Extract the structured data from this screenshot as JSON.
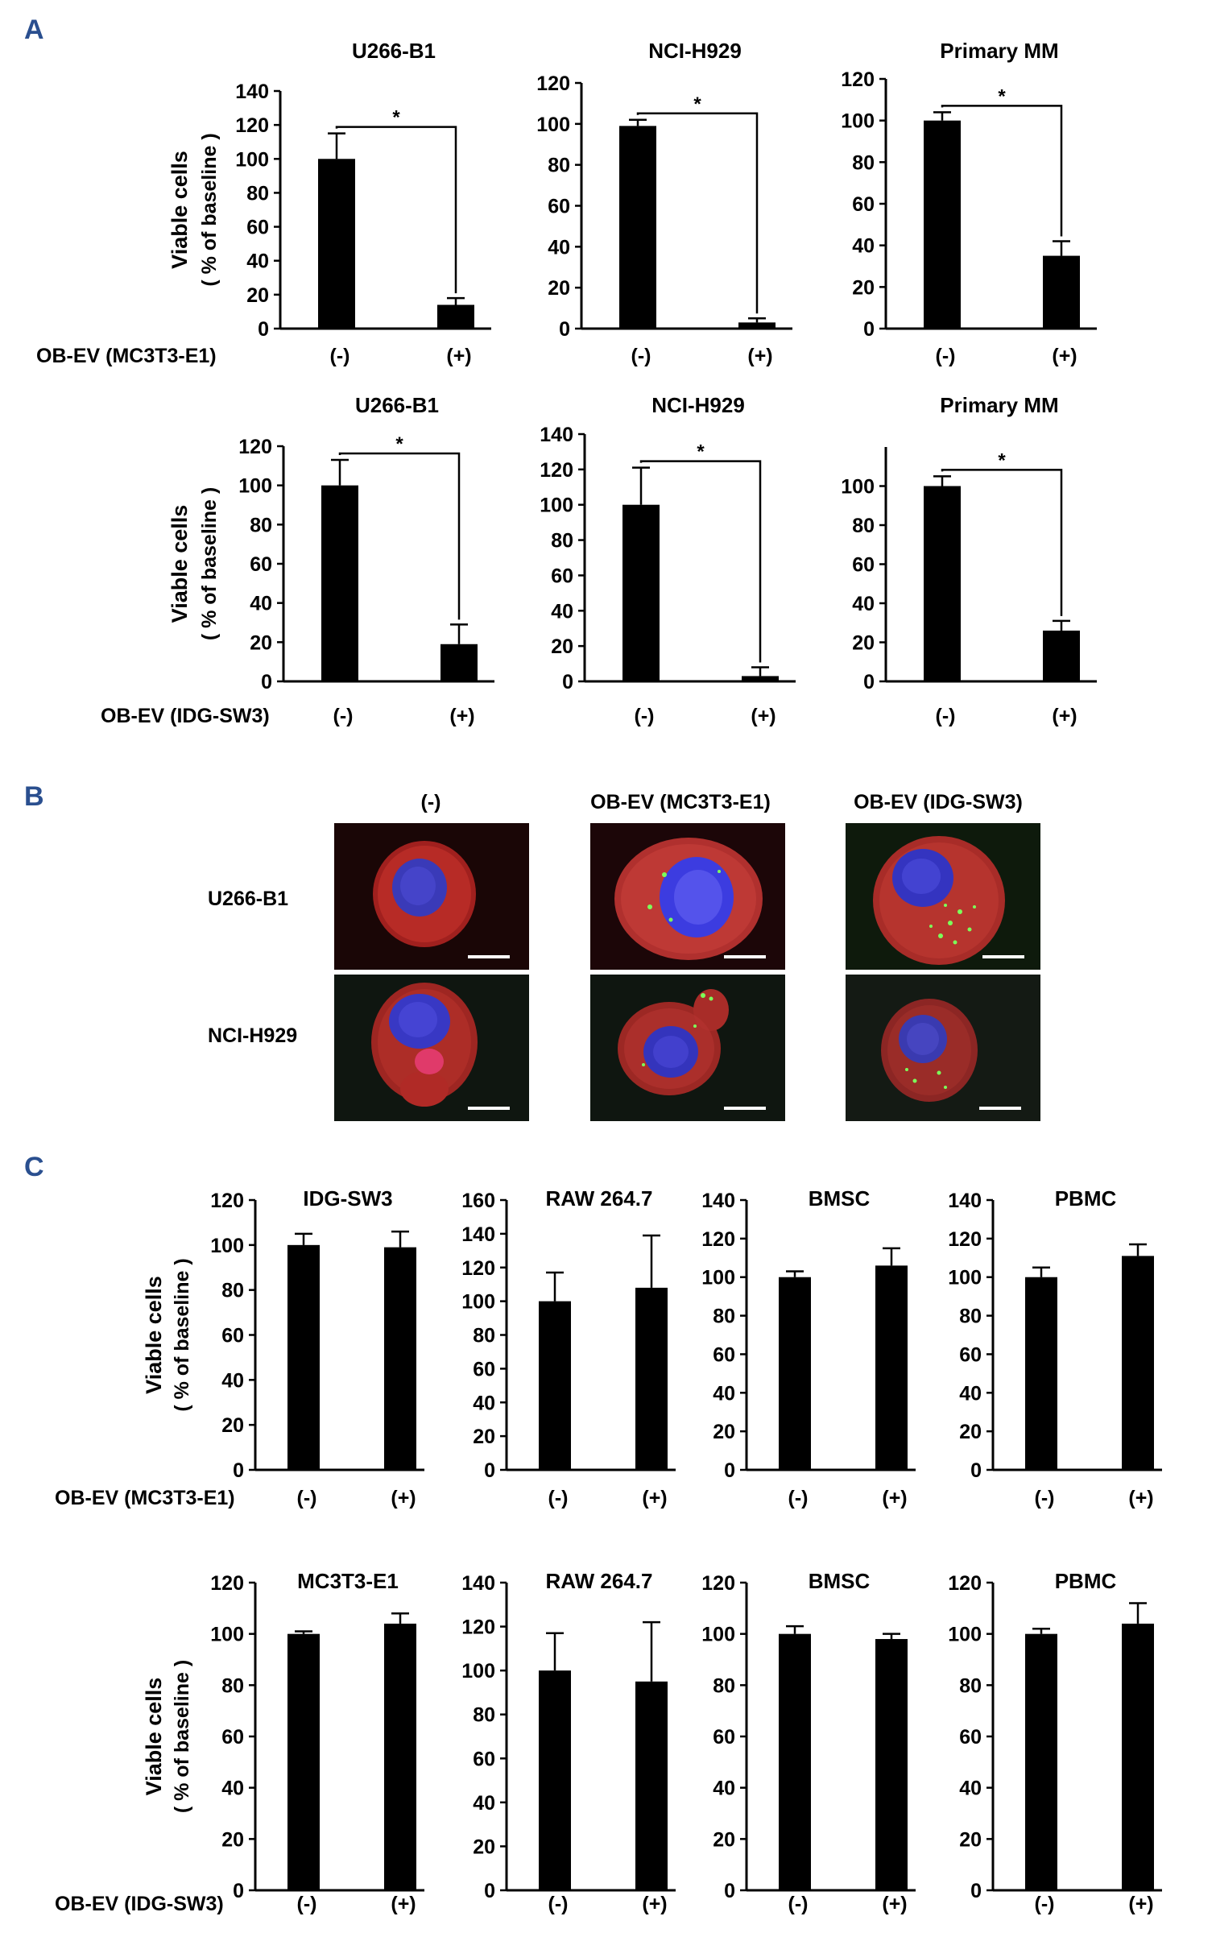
{
  "panels": {
    "a": "A",
    "b": "B",
    "c": "C"
  },
  "chart_data": [
    {
      "type": "bar",
      "row": "A1",
      "title": "U266-B1",
      "ylabel": "Viable cells",
      "ylabel2": "( % of baseline )",
      "xrow_label": "OB-EV (MC3T3-E1)",
      "categories": [
        "(-)",
        "(+)"
      ],
      "values": [
        100,
        14
      ],
      "errors": [
        15,
        4
      ],
      "ylim": [
        0,
        140
      ],
      "yticks": [
        0,
        20,
        40,
        60,
        80,
        100,
        120,
        140
      ],
      "significance": "*"
    },
    {
      "type": "bar",
      "row": "A1",
      "title": "NCI-H929",
      "categories": [
        "(-)",
        "(+)"
      ],
      "values": [
        99,
        3
      ],
      "errors": [
        3,
        2
      ],
      "ylim": [
        0,
        120
      ],
      "yticks": [
        0,
        20,
        40,
        60,
        80,
        100,
        120
      ],
      "significance": "*"
    },
    {
      "type": "bar",
      "row": "A1",
      "title": "Primary MM",
      "categories": [
        "(-)",
        "(+)"
      ],
      "values": [
        100,
        35
      ],
      "errors": [
        4,
        7
      ],
      "ylim": [
        0,
        120
      ],
      "yticks": [
        0,
        20,
        40,
        60,
        80,
        100,
        120
      ],
      "significance": "*"
    },
    {
      "type": "bar",
      "row": "A2",
      "title": "U266-B1",
      "ylabel": "Viable cells",
      "ylabel2": "( % of baseline )",
      "xrow_label": "OB-EV (IDG-SW3)",
      "categories": [
        "(-)",
        "(+)"
      ],
      "values": [
        100,
        19
      ],
      "errors": [
        13,
        10
      ],
      "ylim": [
        0,
        120
      ],
      "yticks": [
        0,
        20,
        40,
        60,
        80,
        100,
        120
      ],
      "significance": "*"
    },
    {
      "type": "bar",
      "row": "A2",
      "title": "NCI-H929",
      "categories": [
        "(-)",
        "(+)"
      ],
      "values": [
        100,
        3
      ],
      "errors": [
        21,
        5
      ],
      "ylim": [
        0,
        140
      ],
      "yticks": [
        0,
        20,
        40,
        60,
        80,
        100,
        120,
        140
      ],
      "significance": "*"
    },
    {
      "type": "bar",
      "row": "A2",
      "title": "Primary MM",
      "categories": [
        "(-)",
        "(+)"
      ],
      "values": [
        100,
        26
      ],
      "errors": [
        5,
        5
      ],
      "ylim": [
        0,
        120
      ],
      "yticks": [
        0,
        20,
        40,
        60,
        80,
        100
      ],
      "significance": "*"
    },
    {
      "type": "bar",
      "row": "C1",
      "title": "IDG-SW3",
      "ylabel": "Viable cells",
      "ylabel2": "( % of  baseline )",
      "xrow_label": "OB-EV (MC3T3-E1)",
      "categories": [
        "(-)",
        "(+)"
      ],
      "values": [
        100,
        99
      ],
      "errors": [
        5,
        7
      ],
      "ylim": [
        0,
        120
      ],
      "yticks": [
        0,
        20,
        40,
        60,
        80,
        100,
        120
      ]
    },
    {
      "type": "bar",
      "row": "C1",
      "title": "RAW 264.7",
      "categories": [
        "(-)",
        "(+)"
      ],
      "values": [
        100,
        108
      ],
      "errors": [
        17,
        31
      ],
      "ylim": [
        0,
        160
      ],
      "yticks": [
        0,
        20,
        40,
        60,
        80,
        100,
        120,
        140,
        160
      ]
    },
    {
      "type": "bar",
      "row": "C1",
      "title": "BMSC",
      "categories": [
        "(-)",
        "(+)"
      ],
      "values": [
        100,
        106
      ],
      "errors": [
        3,
        9
      ],
      "ylim": [
        0,
        140
      ],
      "yticks": [
        0,
        20,
        40,
        60,
        80,
        100,
        120,
        140
      ]
    },
    {
      "type": "bar",
      "row": "C1",
      "title": "PBMC",
      "categories": [
        "(-)",
        "(+)"
      ],
      "values": [
        100,
        111
      ],
      "errors": [
        5,
        6
      ],
      "ylim": [
        0,
        140
      ],
      "yticks": [
        0,
        20,
        40,
        60,
        80,
        100,
        120,
        140
      ]
    },
    {
      "type": "bar",
      "row": "C2",
      "title": "MC3T3-E1",
      "ylabel": "Viable cells",
      "ylabel2": "( % of baseline )",
      "xrow_label": "OB-EV (IDG-SW3)",
      "categories": [
        "(-)",
        "(+)"
      ],
      "values": [
        100,
        104
      ],
      "errors": [
        1,
        4
      ],
      "ylim": [
        0,
        120
      ],
      "yticks": [
        0,
        20,
        40,
        60,
        80,
        100,
        120
      ]
    },
    {
      "type": "bar",
      "row": "C2",
      "title": "RAW 264.7",
      "categories": [
        "(-)",
        "(+)"
      ],
      "values": [
        100,
        95
      ],
      "errors": [
        17,
        27
      ],
      "ylim": [
        0,
        140
      ],
      "yticks": [
        0,
        20,
        40,
        60,
        80,
        100,
        120,
        140
      ]
    },
    {
      "type": "bar",
      "row": "C2",
      "title": "BMSC",
      "categories": [
        "(-)",
        "(+)"
      ],
      "values": [
        100,
        98
      ],
      "errors": [
        3,
        2
      ],
      "ylim": [
        0,
        120
      ],
      "yticks": [
        0,
        20,
        40,
        60,
        80,
        100,
        120
      ]
    },
    {
      "type": "bar",
      "row": "C2",
      "title": "PBMC",
      "categories": [
        "(-)",
        "(+)"
      ],
      "values": [
        100,
        104
      ],
      "errors": [
        2,
        8
      ],
      "ylim": [
        0,
        120
      ],
      "yticks": [
        0,
        20,
        40,
        60,
        80,
        100,
        120
      ]
    }
  ],
  "microscopy": {
    "columns": [
      "(-)",
      "OB-EV (MC3T3-E1)",
      "OB-EV (IDG-SW3)"
    ],
    "rows": [
      "U266-B1",
      "NCI-H929"
    ]
  }
}
